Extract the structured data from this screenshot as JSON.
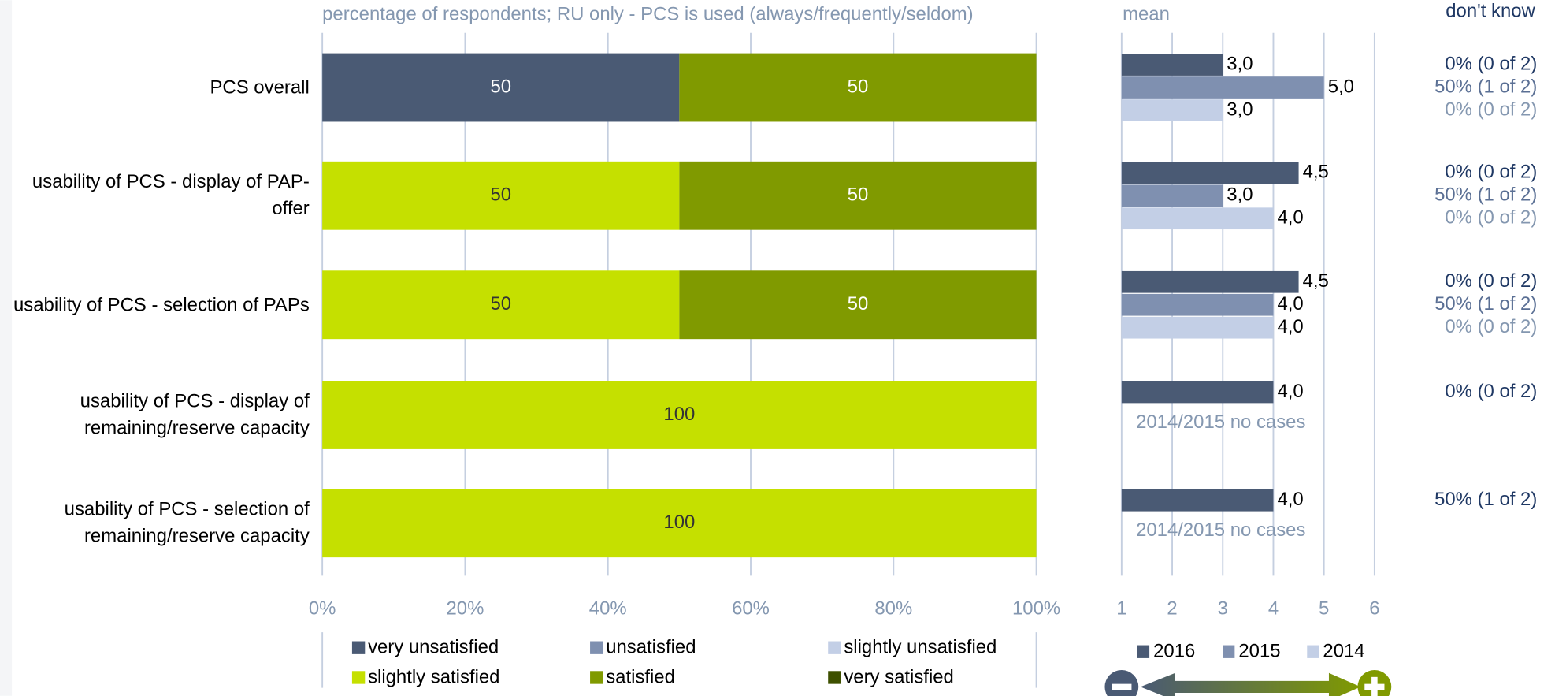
{
  "chart_data": [
    {
      "type": "stacked-bar",
      "title": "percentage of respondents; RU only - PCS is used (always/frequently/seldom)",
      "categories": [
        "PCS overall",
        "usability of PCS - display of PAP-offer",
        "usability of PCS - selection of PAPs",
        "usability of PCS - display of remaining/reserve capacity",
        "usability of PCS - selection of remaining/reserve capacity"
      ],
      "series": [
        {
          "name": "very unsatisfied",
          "color": "#4a5a74",
          "values": [
            50,
            null,
            null,
            null,
            null
          ]
        },
        {
          "name": "unsatisfied",
          "color": "#7f90b0",
          "values": [
            null,
            null,
            null,
            null,
            null
          ]
        },
        {
          "name": "slightly unsatisfied",
          "color": "#c3cfe6",
          "values": [
            null,
            null,
            null,
            null,
            null
          ]
        },
        {
          "name": "slightly satisfied",
          "color": "#c5e000",
          "values": [
            null,
            50,
            50,
            100,
            100
          ]
        },
        {
          "name": "satisfied",
          "color": "#809a00",
          "values": [
            50,
            50,
            50,
            null,
            null
          ]
        },
        {
          "name": "very satisfied",
          "color": "#3e5000",
          "values": [
            null,
            null,
            null,
            null,
            null
          ]
        }
      ],
      "xlim": [
        0,
        100
      ],
      "xticks": [
        {
          "value": 0,
          "label": "0%"
        },
        {
          "value": 20,
          "label": "20%"
        },
        {
          "value": 40,
          "label": "40%"
        },
        {
          "value": 60,
          "label": "60%"
        },
        {
          "value": 80,
          "label": "80%"
        },
        {
          "value": 100,
          "label": "100%"
        }
      ],
      "grid": true
    },
    {
      "type": "bar",
      "title": "mean",
      "series": [
        {
          "name": "2016",
          "color": "#4a5a74",
          "values": [
            3,
            4.5,
            4.5,
            4,
            4
          ],
          "value_labels": [
            "3,0",
            "4,5",
            "4,5",
            "4,0",
            "4,0"
          ]
        },
        {
          "name": "2015",
          "color": "#7f90b0",
          "values": [
            5,
            3,
            4,
            null,
            null
          ],
          "value_labels": [
            "5,0",
            "3,0",
            "4,0",
            null,
            null
          ]
        },
        {
          "name": "2014",
          "color": "#c3cfe6",
          "values": [
            3,
            4,
            4,
            null,
            null
          ],
          "value_labels": [
            "3,0",
            "4,0",
            "4,0",
            null,
            null
          ]
        }
      ],
      "annotations": [
        null,
        null,
        null,
        "2014/2015 no cases",
        "2014/2015 no cases"
      ],
      "xlim": [
        1,
        6
      ],
      "xticks": [
        1,
        2,
        3,
        4,
        5,
        6
      ],
      "grid": true
    }
  ],
  "dont_know": {
    "title": "don't know",
    "colors": [
      "#1f3864",
      "#5a6f94",
      "#8497b0"
    ],
    "rows": [
      [
        "0% (0 of 2)",
        "50% (1 of 2)",
        "0% (0 of 2)"
      ],
      [
        "0% (0 of 2)",
        "50% (1 of 2)",
        "0% (0 of 2)"
      ],
      [
        "0% (0 of 2)",
        "50% (1 of 2)",
        "0% (0 of 2)"
      ],
      [
        "0% (0 of 2)"
      ],
      [
        "50% (1 of 2)"
      ]
    ]
  }
}
